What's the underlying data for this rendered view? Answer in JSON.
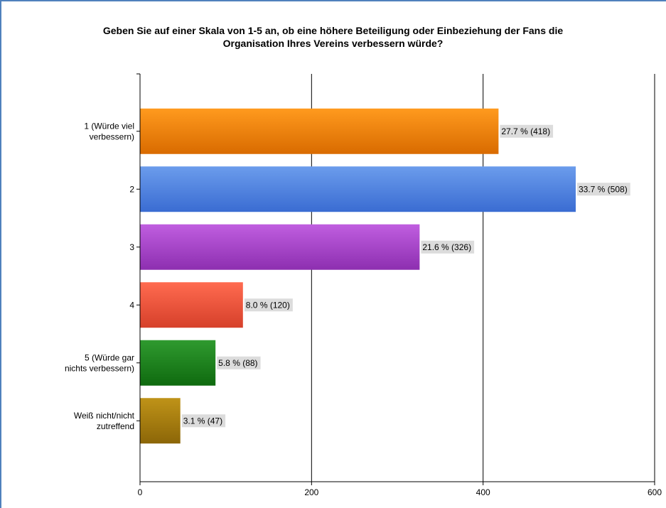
{
  "chart_data": {
    "type": "bar",
    "orientation": "horizontal",
    "title_lines": [
      "Geben Sie auf einer Skala von 1-5 an, ob eine höhere Beteiligung oder Einbeziehung der Fans die",
      "Organisation Ihres Vereins verbessern würde?"
    ],
    "categories": [
      [
        "1 (Würde viel",
        "verbessern)"
      ],
      [
        "2"
      ],
      [
        "3"
      ],
      [
        "4"
      ],
      [
        "5 (Würde gar",
        "nichts verbessern)"
      ],
      [
        "Weiß nicht/nicht",
        "zutreffend"
      ]
    ],
    "values": [
      418,
      508,
      326,
      120,
      88,
      47
    ],
    "data_labels": [
      "27.7 % (418)",
      "33.7 % (508)",
      "21.6 % (326)",
      "8.0 % (120)",
      "5.8 % (88)",
      "3.1 % (47)"
    ],
    "colors": [
      [
        "#ff9a1e",
        "#d96b00"
      ],
      [
        "#6b9cec",
        "#3a6cd2"
      ],
      [
        "#c05ee0",
        "#8d2fb0"
      ],
      [
        "#ff6b50",
        "#d6402a"
      ],
      [
        "#2f9a2f",
        "#0f6a0f"
      ],
      [
        "#bf9318",
        "#8c6608"
      ]
    ],
    "x_ticks": [
      0,
      200,
      400,
      600
    ],
    "xlim": [
      0,
      600
    ],
    "grid": true,
    "label_bg": "#dcdcdc"
  }
}
